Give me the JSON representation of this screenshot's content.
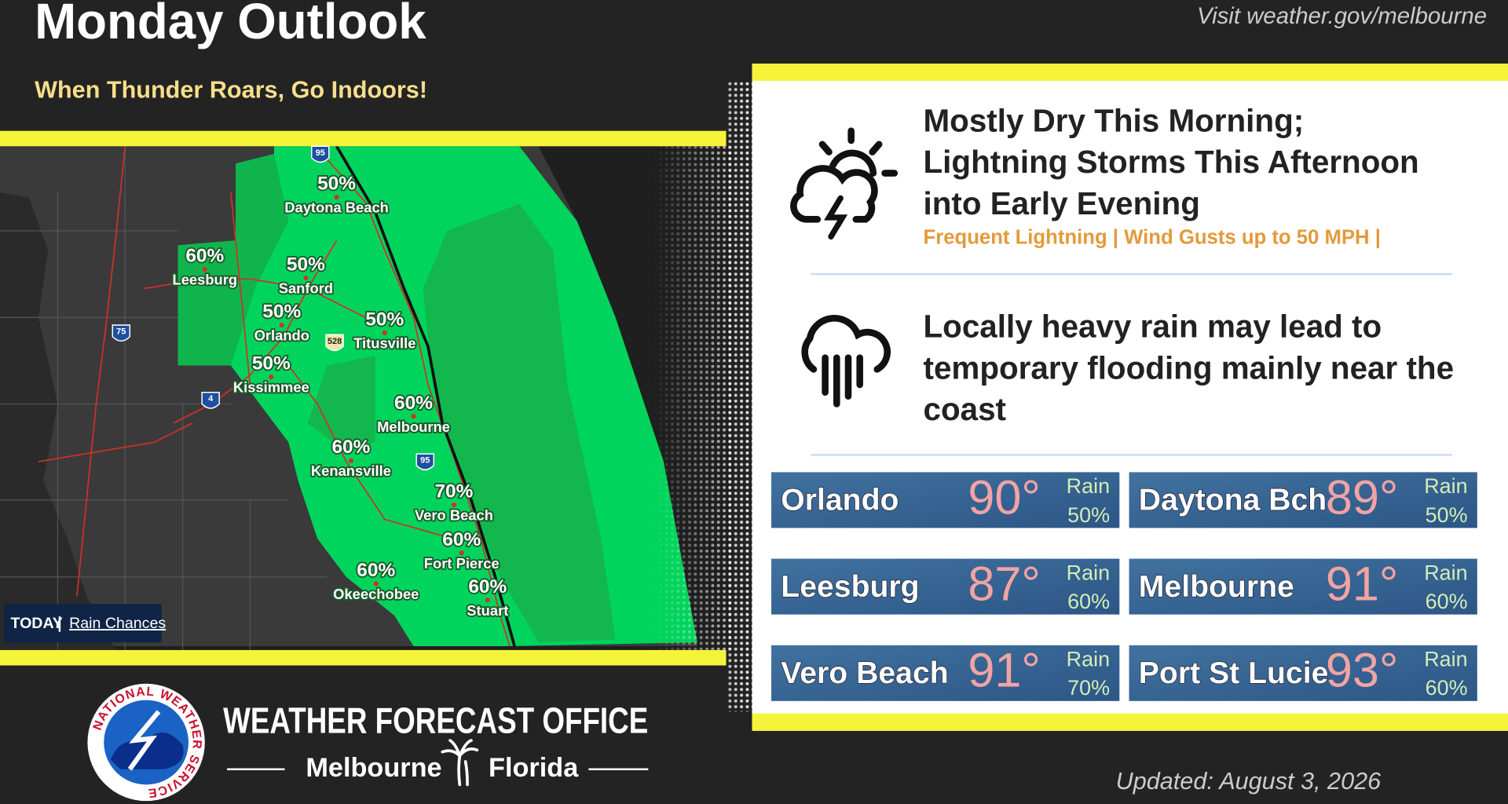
{
  "header": {
    "title": "Monday Outlook",
    "subtitle": "When Thunder Roars, Go Indoors!",
    "link": "Visit weather.gov/melbourne"
  },
  "map": {
    "tag": "TODAY",
    "label": "Rain Chances",
    "shields": [
      "95",
      "75",
      "4",
      "95",
      "528"
    ],
    "cities": [
      {
        "name": "Daytona Beach",
        "chance": "50%"
      },
      {
        "name": "Leesburg",
        "chance": "60%"
      },
      {
        "name": "Sanford",
        "chance": "50%"
      },
      {
        "name": "Orlando",
        "chance": "50%"
      },
      {
        "name": "Titusville",
        "chance": "50%"
      },
      {
        "name": "Kissimmee",
        "chance": "50%"
      },
      {
        "name": "Melbourne",
        "chance": "60%"
      },
      {
        "name": "Kenansville",
        "chance": "60%"
      },
      {
        "name": "Vero Beach",
        "chance": "70%"
      },
      {
        "name": "Fort Pierce",
        "chance": "60%"
      },
      {
        "name": "Okeechobee",
        "chance": "60%"
      },
      {
        "name": "Stuart",
        "chance": "60%"
      }
    ]
  },
  "forecast": [
    {
      "lines": [
        "Mostly Dry This Morning;",
        "Lightning Storms This Afternoon",
        "into Early Evening"
      ],
      "detail": "Frequent Lightning | Wind Gusts up to 50 MPH |"
    },
    {
      "lines": [
        "Locally heavy rain may lead to",
        "temporary flooding mainly near the",
        "coast"
      ]
    }
  ],
  "cards": [
    {
      "name": "Orlando",
      "temp": "90°",
      "rain": "Rain",
      "chance": "50%"
    },
    {
      "name": "Daytona Bch",
      "temp": "89°",
      "rain": "Rain",
      "chance": "50%"
    },
    {
      "name": "Leesburg",
      "temp": "87°",
      "rain": "Rain",
      "chance": "60%"
    },
    {
      "name": "Melbourne",
      "temp": "91°",
      "rain": "Rain",
      "chance": "60%"
    },
    {
      "name": "Vero Beach",
      "temp": "91°",
      "rain": "Rain",
      "chance": "70%"
    },
    {
      "name": "Port St Lucie",
      "temp": "93°",
      "rain": "Rain",
      "chance": "60%"
    }
  ],
  "footer": {
    "logo": "NATIONAL WEATHER SERVICE",
    "office": "WEATHER FORECAST OFFICE",
    "city": "Melbourne",
    "state": "Florida",
    "updated": "Updated: August 3, 2026"
  }
}
